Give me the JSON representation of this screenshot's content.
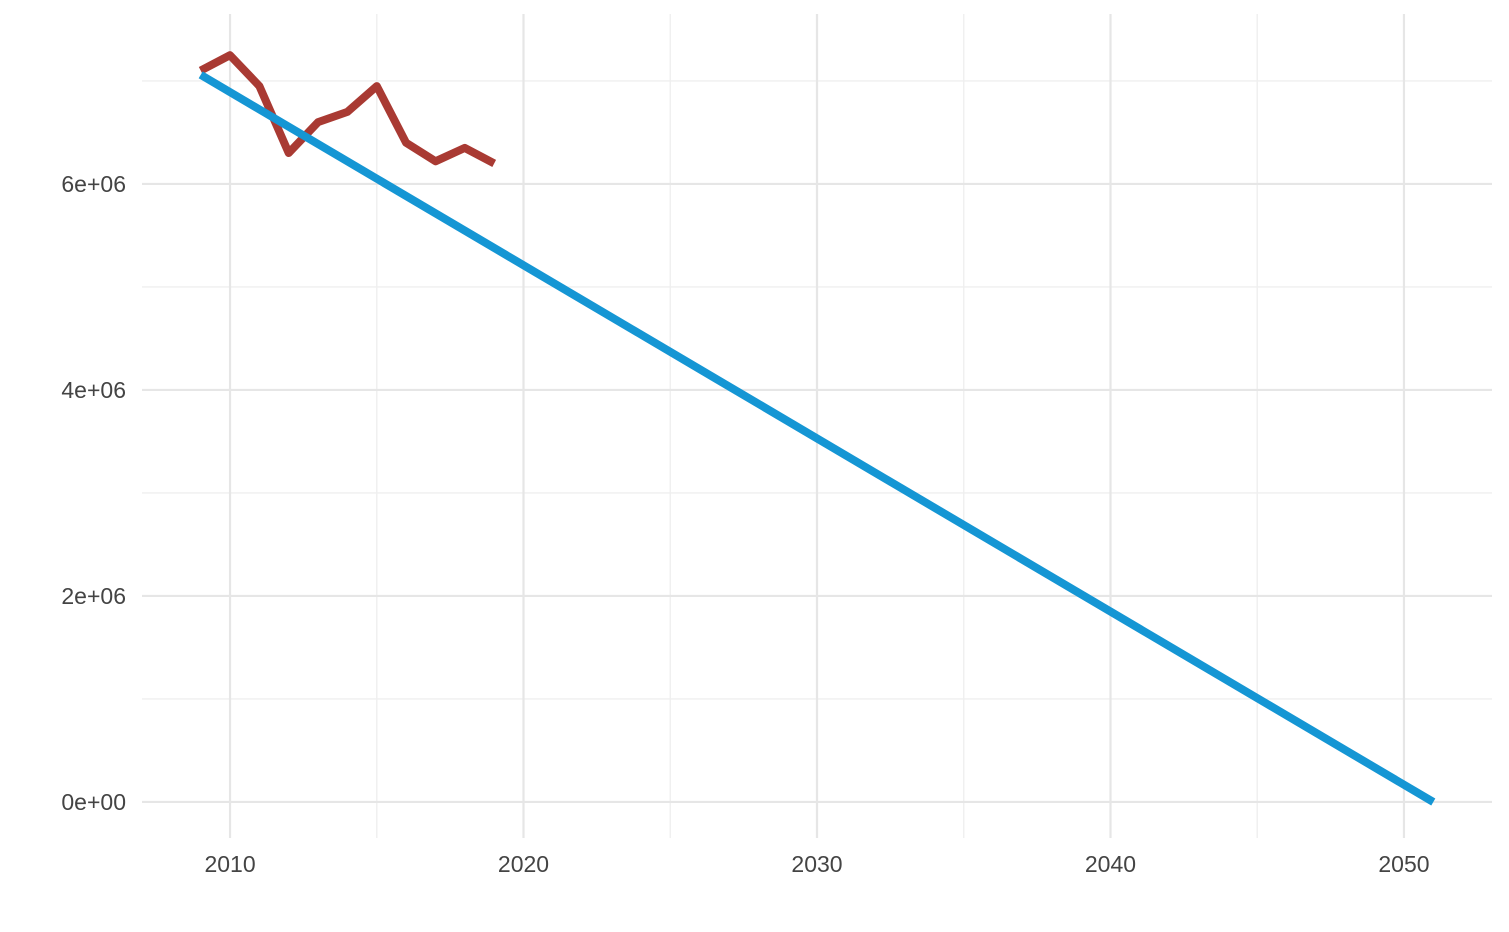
{
  "chart_data": {
    "type": "line",
    "title": "",
    "xlabel": "",
    "ylabel": "",
    "xlim": [
      2007,
      2053
    ],
    "ylim": [
      -350000,
      7650000
    ],
    "x_ticks": [
      2010,
      2020,
      2030,
      2040,
      2050
    ],
    "x_tick_labels": [
      "2010",
      "2020",
      "2030",
      "2040",
      "2050"
    ],
    "x_minor_ticks": [
      2015,
      2025,
      2035,
      2045
    ],
    "y_ticks": [
      0,
      2000000,
      4000000,
      6000000
    ],
    "y_tick_labels": [
      "0e+00",
      "2e+06",
      "4e+06",
      "6e+06"
    ],
    "y_minor_ticks": [
      1000000,
      3000000,
      5000000,
      7000000
    ],
    "grid": true,
    "legend": "none",
    "series": [
      {
        "color": "#A93A33",
        "x": [
          2009,
          2010,
          2011,
          2012,
          2013,
          2014,
          2015,
          2016,
          2017,
          2018,
          2019
        ],
        "values": [
          7100000,
          7250000,
          6950000,
          6300000,
          6600000,
          6700000,
          6950000,
          6400000,
          6220000,
          6350000,
          6200000
        ]
      },
      {
        "color": "#1596D4",
        "x": [
          2009,
          2051
        ],
        "values": [
          7060000,
          0
        ]
      }
    ]
  }
}
